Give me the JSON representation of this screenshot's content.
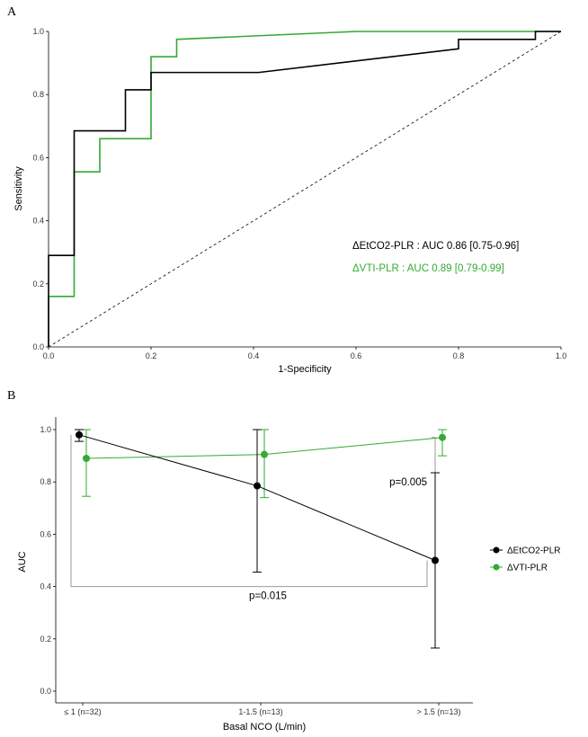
{
  "figure_labels": {
    "panel_a": "A",
    "panel_b": "B"
  },
  "chart_data": [
    {
      "type": "line",
      "panel": "A",
      "title": "",
      "xlabel": "1-Specificity",
      "ylabel": "Sensitivity",
      "xlim": [
        0,
        1
      ],
      "ylim": [
        0,
        1
      ],
      "xticks": [
        "0.0",
        "0.2",
        "0.4",
        "0.6",
        "0.8",
        "1.0"
      ],
      "yticks": [
        "0.0",
        "0.2",
        "0.4",
        "0.6",
        "0.8",
        "1.0"
      ],
      "grid": false,
      "reference_line": {
        "name": "chance diagonal",
        "style": "dashed",
        "color": "#000000",
        "points": [
          [
            0,
            0
          ],
          [
            1,
            1
          ]
        ]
      },
      "series": [
        {
          "name": "ΔEtCO2-PLR",
          "color": "#000000",
          "points": [
            [
              0,
              0
            ],
            [
              0,
              0.16
            ],
            [
              0,
              0.29
            ],
            [
              0.05,
              0.29
            ],
            [
              0.05,
              0.685
            ],
            [
              0.15,
              0.685
            ],
            [
              0.15,
              0.815
            ],
            [
              0.2,
              0.815
            ],
            [
              0.2,
              0.87
            ],
            [
              0.41,
              0.87
            ],
            [
              0.8,
              0.945
            ],
            [
              0.8,
              0.975
            ],
            [
              0.95,
              0.975
            ],
            [
              0.95,
              1.0
            ],
            [
              1.0,
              1.0
            ]
          ]
        },
        {
          "name": "ΔVTI-PLR",
          "color": "#33AA33",
          "points": [
            [
              0,
              0
            ],
            [
              0,
              0.16
            ],
            [
              0.05,
              0.16
            ],
            [
              0.05,
              0.555
            ],
            [
              0.1,
              0.555
            ],
            [
              0.1,
              0.66
            ],
            [
              0.2,
              0.66
            ],
            [
              0.2,
              0.92
            ],
            [
              0.25,
              0.92
            ],
            [
              0.25,
              0.975
            ],
            [
              0.6,
              1.0
            ],
            [
              1.0,
              1.0
            ]
          ]
        }
      ],
      "annotations": [
        {
          "text": "ΔEtCO2-PLR : AUC 0.86 [0.75-0.96]",
          "color": "#000000"
        },
        {
          "text": "ΔVTI-PLR : AUC 0.89 [0.79-0.99]",
          "color": "#33AA33"
        }
      ]
    },
    {
      "type": "line",
      "panel": "B",
      "title": "",
      "xlabel": "Basal NCO (L/min)",
      "ylabel": "AUC",
      "ylim": [
        0,
        1.05
      ],
      "yticks": [
        "0.0",
        "0.2",
        "0.4",
        "0.6",
        "0.8",
        "1.0"
      ],
      "categories": [
        "≤ 1 (n=32)",
        "1-1.5 (n=13)",
        "> 1.5 (n=13)"
      ],
      "grid": false,
      "series": [
        {
          "name": "ΔEtCO2-PLR",
          "color": "#000000",
          "values": [
            0.98,
            0.785,
            0.5
          ],
          "lower": [
            0.955,
            0.455,
            0.165
          ],
          "upper": [
            1.0,
            1.0,
            0.835
          ]
        },
        {
          "name": "ΔVTI-PLR",
          "color": "#33AA33",
          "values": [
            0.89,
            0.905,
            0.97
          ],
          "lower": [
            0.745,
            0.74,
            0.9
          ],
          "upper": [
            1.0,
            1.0,
            1.0
          ]
        }
      ],
      "annotations": [
        {
          "text": "p=0.015",
          "between": [
            "≤ 1 (n=32)",
            "> 1.5 (n=13)"
          ],
          "bracket_level": 0.4
        },
        {
          "text": "p=0.005",
          "between": [
            "ΔEtCO2-PLR",
            "ΔVTI-PLR"
          ],
          "at_category": "> 1.5 (n=13)"
        }
      ],
      "legend": {
        "placement": "right",
        "entries": [
          "ΔEtCO2-PLR",
          "ΔVTI-PLR"
        ]
      }
    }
  ]
}
